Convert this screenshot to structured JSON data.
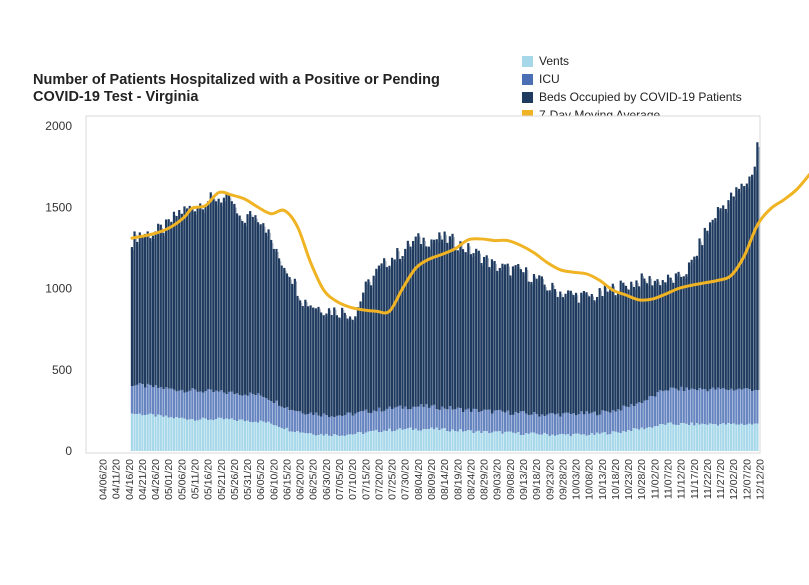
{
  "chart_data": {
    "type": "bar",
    "stacked": true,
    "title": "Number of Patients Hospitalized with a Positive or Pending COVID-19 Test - Virginia",
    "xlabel": "",
    "ylabel": "",
    "ylim": [
      0,
      2000
    ],
    "y_ticks": [
      0,
      500,
      1000,
      1500,
      2000
    ],
    "x_tick_labels": [
      "04/06/20",
      "04/11/20",
      "04/16/20",
      "04/21/20",
      "04/26/20",
      "05/01/20",
      "05/06/20",
      "05/11/20",
      "05/16/20",
      "05/21/20",
      "05/26/20",
      "05/31/20",
      "06/05/20",
      "06/10/20",
      "06/15/20",
      "06/20/20",
      "06/25/20",
      "06/30/20",
      "07/05/20",
      "07/10/20",
      "07/15/20",
      "07/20/20",
      "07/25/20",
      "07/30/20",
      "08/04/20",
      "08/09/20",
      "08/14/20",
      "08/19/20",
      "08/24/20",
      "08/29/20",
      "09/03/20",
      "09/08/20",
      "09/13/20",
      "09/18/20",
      "09/23/20",
      "09/28/20",
      "10/03/20",
      "10/08/20",
      "10/13/20",
      "10/18/20",
      "10/23/20",
      "10/28/20",
      "11/02/20",
      "11/07/20",
      "11/12/20",
      "11/17/20",
      "11/22/20",
      "11/27/20",
      "12/02/20",
      "12/07/20",
      "12/12/20"
    ],
    "legend_position": "top-right",
    "grid": false,
    "series": [
      {
        "name": "Vents",
        "color": "#a6d8ea",
        "values": [
          [
            0,
            230
          ],
          [
            5,
            225
          ],
          [
            10,
            215
          ],
          [
            15,
            205
          ],
          [
            20,
            200
          ],
          [
            25,
            195
          ],
          [
            30,
            195
          ],
          [
            35,
            195
          ],
          [
            40,
            190
          ],
          [
            45,
            185
          ],
          [
            50,
            180
          ],
          [
            55,
            160
          ],
          [
            60,
            130
          ],
          [
            65,
            115
          ],
          [
            70,
            105
          ],
          [
            75,
            100
          ],
          [
            80,
            100
          ],
          [
            85,
            105
          ],
          [
            90,
            115
          ],
          [
            95,
            125
          ],
          [
            100,
            130
          ],
          [
            105,
            135
          ],
          [
            110,
            135
          ],
          [
            115,
            135
          ],
          [
            120,
            130
          ],
          [
            125,
            125
          ],
          [
            130,
            120
          ],
          [
            135,
            115
          ],
          [
            140,
            115
          ],
          [
            145,
            110
          ],
          [
            150,
            105
          ],
          [
            155,
            105
          ],
          [
            160,
            100
          ],
          [
            165,
            100
          ],
          [
            170,
            100
          ],
          [
            175,
            100
          ],
          [
            180,
            110
          ],
          [
            185,
            115
          ],
          [
            190,
            130
          ],
          [
            195,
            140
          ],
          [
            200,
            155
          ],
          [
            203,
            165
          ]
        ]
      },
      {
        "name": "ICU",
        "color": "#4a6fb5",
        "values": [
          [
            0,
            410
          ],
          [
            5,
            400
          ],
          [
            10,
            390
          ],
          [
            15,
            380
          ],
          [
            20,
            375
          ],
          [
            25,
            370
          ],
          [
            30,
            365
          ],
          [
            35,
            360
          ],
          [
            40,
            355
          ],
          [
            45,
            350
          ],
          [
            50,
            340
          ],
          [
            55,
            300
          ],
          [
            60,
            260
          ],
          [
            65,
            240
          ],
          [
            70,
            230
          ],
          [
            75,
            220
          ],
          [
            80,
            220
          ],
          [
            85,
            230
          ],
          [
            90,
            245
          ],
          [
            95,
            255
          ],
          [
            100,
            265
          ],
          [
            105,
            270
          ],
          [
            110,
            275
          ],
          [
            115,
            270
          ],
          [
            120,
            265
          ],
          [
            125,
            255
          ],
          [
            130,
            250
          ],
          [
            135,
            245
          ],
          [
            140,
            240
          ],
          [
            145,
            235
          ],
          [
            150,
            230
          ],
          [
            155,
            225
          ],
          [
            160,
            225
          ],
          [
            165,
            225
          ],
          [
            170,
            230
          ],
          [
            175,
            230
          ],
          [
            180,
            240
          ],
          [
            185,
            255
          ],
          [
            190,
            280
          ],
          [
            195,
            310
          ],
          [
            200,
            350
          ],
          [
            203,
            380
          ]
        ]
      },
      {
        "name": "Beds Occupied by COVID-19 Patients",
        "color": "#1f3a5f",
        "values": [
          [
            0,
            1300
          ],
          [
            3,
            1340
          ],
          [
            8,
            1340
          ],
          [
            13,
            1380
          ],
          [
            18,
            1470
          ],
          [
            23,
            1500
          ],
          [
            28,
            1540
          ],
          [
            33,
            1560
          ],
          [
            38,
            1540
          ],
          [
            41,
            1410
          ],
          [
            46,
            1460
          ],
          [
            50,
            1420
          ],
          [
            55,
            1210
          ],
          [
            60,
            1100
          ],
          [
            65,
            930
          ],
          [
            70,
            890
          ],
          [
            75,
            870
          ],
          [
            80,
            860
          ],
          [
            85,
            840
          ],
          [
            88,
            980
          ],
          [
            93,
            1100
          ],
          [
            98,
            1180
          ],
          [
            103,
            1230
          ],
          [
            108,
            1300
          ],
          [
            113,
            1300
          ],
          [
            118,
            1310
          ],
          [
            123,
            1290
          ],
          [
            128,
            1240
          ],
          [
            133,
            1200
          ],
          [
            138,
            1140
          ],
          [
            143,
            1120
          ],
          [
            148,
            1110
          ],
          [
            153,
            1070
          ],
          [
            158,
            1010
          ],
          [
            163,
            980
          ],
          [
            168,
            960
          ],
          [
            173,
            950
          ],
          [
            178,
            960
          ],
          [
            183,
            1000
          ],
          [
            188,
            1020
          ],
          [
            193,
            1050
          ],
          [
            198,
            1050
          ],
          [
            203,
            1050
          ],
          [
            208,
            1060
          ],
          [
            213,
            1150
          ],
          [
            218,
            1340
          ],
          [
            223,
            1480
          ],
          [
            228,
            1560
          ],
          [
            233,
            1640
          ],
          [
            236,
            1700
          ],
          [
            237,
            1750
          ],
          [
            238,
            1900
          ]
        ]
      },
      {
        "name": "7-Day Moving Average",
        "color": "#f0b323",
        "type": "line",
        "values": [
          [
            0,
            1310
          ],
          [
            5,
            1325
          ],
          [
            10,
            1345
          ],
          [
            15,
            1380
          ],
          [
            20,
            1440
          ],
          [
            23,
            1495
          ],
          [
            28,
            1510
          ],
          [
            33,
            1590
          ],
          [
            38,
            1575
          ],
          [
            43,
            1550
          ],
          [
            48,
            1500
          ],
          [
            53,
            1460
          ],
          [
            58,
            1480
          ],
          [
            63,
            1380
          ],
          [
            68,
            1160
          ],
          [
            73,
            990
          ],
          [
            78,
            920
          ],
          [
            83,
            885
          ],
          [
            88,
            868
          ],
          [
            93,
            860
          ],
          [
            98,
            860
          ],
          [
            103,
            1000
          ],
          [
            108,
            1125
          ],
          [
            113,
            1180
          ],
          [
            118,
            1210
          ],
          [
            123,
            1245
          ],
          [
            128,
            1300
          ],
          [
            133,
            1305
          ],
          [
            138,
            1295
          ],
          [
            143,
            1295
          ],
          [
            148,
            1265
          ],
          [
            153,
            1220
          ],
          [
            158,
            1160
          ],
          [
            163,
            1115
          ],
          [
            168,
            1100
          ],
          [
            173,
            1090
          ],
          [
            178,
            1050
          ],
          [
            183,
            990
          ],
          [
            188,
            960
          ],
          [
            193,
            930
          ],
          [
            198,
            935
          ],
          [
            203,
            965
          ],
          [
            208,
            1000
          ],
          [
            213,
            1020
          ],
          [
            218,
            1035
          ],
          [
            223,
            1050
          ],
          [
            228,
            1080
          ],
          [
            233,
            1200
          ],
          [
            238,
            1390
          ],
          [
            243,
            1490
          ],
          [
            248,
            1545
          ],
          [
            253,
            1610
          ],
          [
            258,
            1705
          ]
        ]
      }
    ]
  }
}
